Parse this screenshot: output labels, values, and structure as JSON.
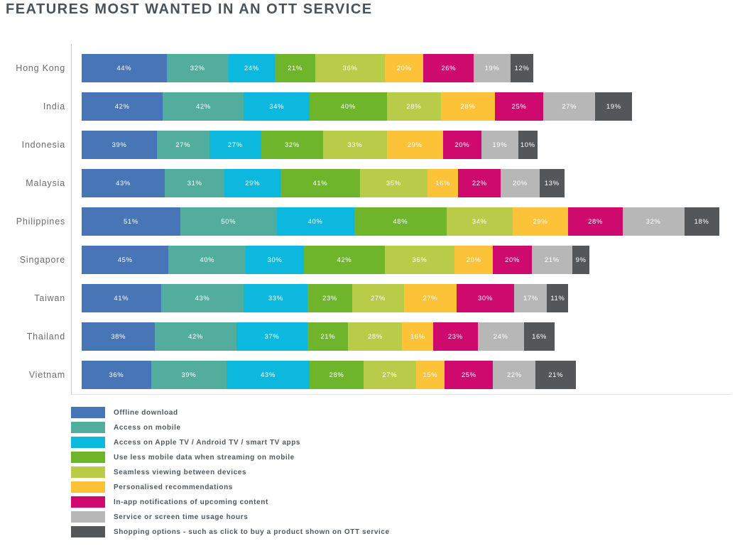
{
  "title": "FEATURES MOST WANTED IN AN OTT SERVICE",
  "chart_data": {
    "type": "bar",
    "variant": "horizontal-stacked",
    "title": "FEATURES MOST WANTED IN AN OTT SERVICE",
    "unit": "%",
    "grid": false,
    "value_labels": "inside-segments-white",
    "legend_position": "bottom-left",
    "categories": [
      "Hong Kong",
      "India",
      "Indonesia",
      "Malaysia",
      "Philippines",
      "Singapore",
      "Taiwan",
      "Thailand",
      "Vietnam"
    ],
    "series": [
      {
        "name": "Offline download",
        "color": "#4775b5",
        "values": [
          44,
          42,
          39,
          43,
          51,
          45,
          41,
          38,
          36
        ]
      },
      {
        "name": "Access on mobile",
        "color": "#52ad9c",
        "values": [
          32,
          42,
          27,
          31,
          50,
          40,
          43,
          42,
          39
        ]
      },
      {
        "name": "Access on Apple TV / Android TV / smart TV apps",
        "color": "#0cb8dd",
        "values": [
          24,
          34,
          27,
          29,
          40,
          30,
          33,
          37,
          43
        ]
      },
      {
        "name": "Use less mobile data when streaming on mobile",
        "color": "#6fb52c",
        "values": [
          21,
          40,
          32,
          41,
          48,
          42,
          23,
          21,
          28
        ]
      },
      {
        "name": "Seamless viewing between devices",
        "color": "#b8cc4a",
        "values": [
          36,
          28,
          33,
          35,
          34,
          36,
          27,
          28,
          27
        ]
      },
      {
        "name": "Personalised recommendations",
        "color": "#fdc338",
        "values": [
          20,
          28,
          29,
          16,
          29,
          20,
          27,
          16,
          15
        ]
      },
      {
        "name": "In-app notifications of upcoming content",
        "color": "#cf0a6e",
        "values": [
          26,
          25,
          20,
          22,
          28,
          20,
          30,
          23,
          25
        ]
      },
      {
        "name": "Service or screen time usage hours",
        "color": "#b7b7b7",
        "values": [
          19,
          27,
          19,
          20,
          32,
          21,
          17,
          24,
          22
        ]
      },
      {
        "name": "Shopping options - such as click to buy a product shown on OTT service",
        "color": "#53575a",
        "values": [
          12,
          19,
          10,
          13,
          18,
          9,
          11,
          16,
          21
        ]
      }
    ]
  }
}
